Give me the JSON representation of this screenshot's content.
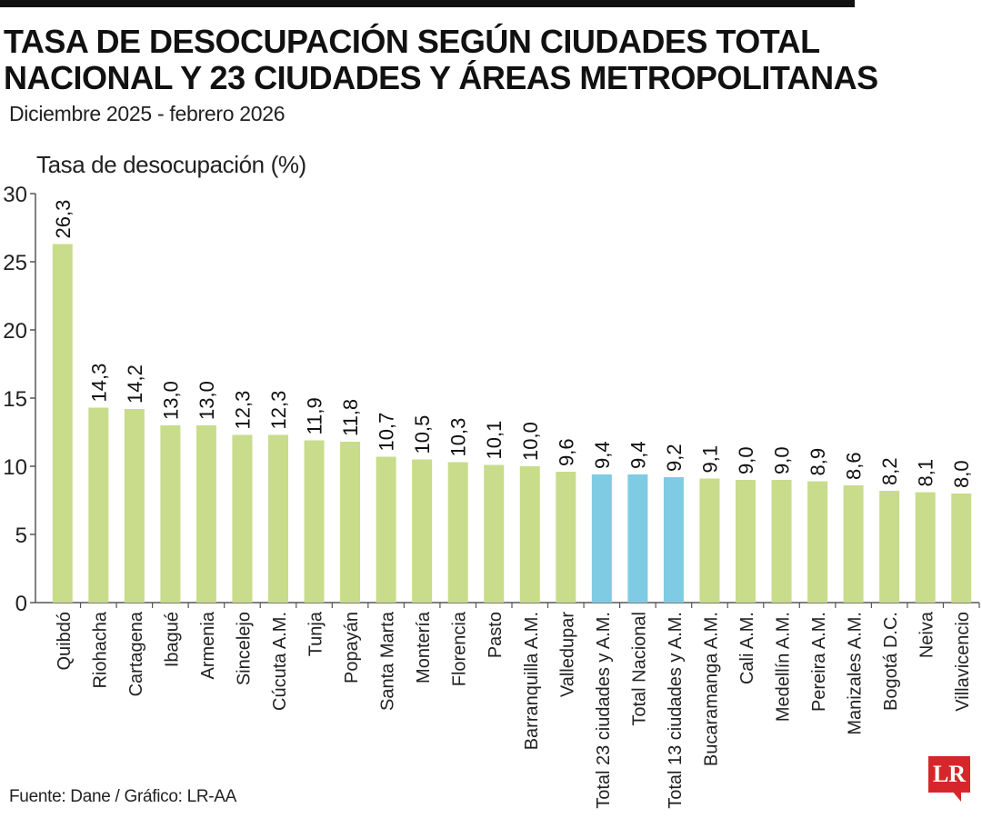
{
  "header": {
    "title": "TASA DE DESOCUPACIÓN SEGÚN CIUDADES TOTAL NACIONAL Y 23 CIUDADES Y ÁREAS METROPOLITANAS",
    "subtitle": "Diciembre 2025 - febrero 2026"
  },
  "footer": {
    "source": "Fuente: Dane / Gráfico: LR-AA",
    "logo_text": "LR"
  },
  "colors": {
    "city_bar": "#c8dc8b",
    "total_bar": "#7fcbe3",
    "axis": "#555555"
  },
  "chart_data": {
    "type": "bar",
    "title": "TASA DE DESOCUPACIÓN SEGÚN CIUDADES TOTAL NACIONAL Y 23 CIUDADES Y ÁREAS METROPOLITANAS",
    "subtitle": "Diciembre 2025 - febrero 2026",
    "xlabel": "",
    "ylabel": "Tasa de desocupación (%)",
    "ylim": [
      0,
      30
    ],
    "yticks": [
      0,
      5,
      10,
      15,
      20,
      25,
      30
    ],
    "grid": false,
    "categories": [
      "Quibdó",
      "Riohacha",
      "Cartagena",
      "Ibagué",
      "Armenia",
      "Sincelejo",
      "Cúcuta A.M.",
      "Tunja",
      "Popayán",
      "Santa Marta",
      "Montería",
      "Florencia",
      "Pasto",
      "Barranquilla A.M.",
      "Valledupar",
      "Total 23 ciudades y A.M.",
      "Total Nacional",
      "Total 13 ciudades y A.M.",
      "Bucaramanga A.M.",
      "Cali A.M.",
      "Medellín A.M.",
      "Pereira A.M.",
      "Manizales A.M.",
      "Bogotá D.C.",
      "Neiva",
      "Villavicencio"
    ],
    "values": [
      26.3,
      14.3,
      14.2,
      13.0,
      13.0,
      12.3,
      12.3,
      11.9,
      11.8,
      10.7,
      10.5,
      10.3,
      10.1,
      10.0,
      9.6,
      9.4,
      9.4,
      9.2,
      9.1,
      9.0,
      9.0,
      8.9,
      8.6,
      8.2,
      8.1,
      8.0
    ],
    "value_labels": [
      "26,3",
      "14,3",
      "14,2",
      "13,0",
      "13,0",
      "12,3",
      "12,3",
      "11,9",
      "11,8",
      "10,7",
      "10,5",
      "10,3",
      "10,1",
      "10,0",
      "9,6",
      "9,4",
      "9,4",
      "9,2",
      "9,1",
      "9,0",
      "9,0",
      "8,9",
      "8,6",
      "8,2",
      "8,1",
      "8,0"
    ],
    "highlighted": [
      "Total 23 ciudades y A.M.",
      "Total Nacional",
      "Total 13 ciudades y A.M."
    ]
  }
}
